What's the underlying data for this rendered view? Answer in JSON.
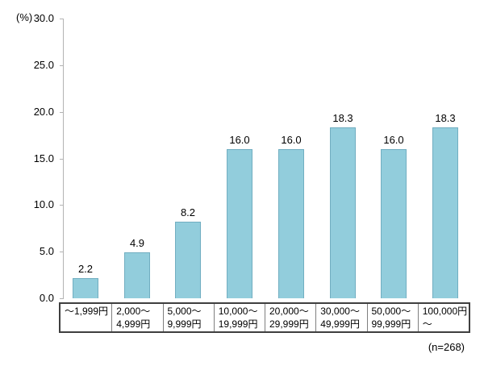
{
  "chart_data": {
    "type": "bar",
    "title": "",
    "xlabel": "",
    "ylabel": "(%)",
    "ylim": [
      0,
      30
    ],
    "ytick_step": 5,
    "ytick_labels": [
      "0.0",
      "5.0",
      "10.0",
      "15.0",
      "20.0",
      "25.0",
      "30.0"
    ],
    "grid": false,
    "legend_position": "none",
    "categories": [
      [
        "～1,999円"
      ],
      [
        "2,000～",
        "4,999円"
      ],
      [
        "5,000～",
        "9,999円"
      ],
      [
        "10,000～",
        "19,999円"
      ],
      [
        "20,000～",
        "29,999円"
      ],
      [
        "30,000～",
        "49,999円"
      ],
      [
        "50,000～",
        "99,999円"
      ],
      [
        "100,000円",
        "～"
      ]
    ],
    "values": [
      2.2,
      4.9,
      8.2,
      16.0,
      16.0,
      18.3,
      16.0,
      18.3
    ],
    "value_labels": [
      "2.2",
      "4.9",
      "8.2",
      "16.0",
      "16.0",
      "18.3",
      "16.0",
      "18.3"
    ],
    "note": "(n=268)",
    "colors": {
      "bar_fill": "#92CDDC",
      "bar_border": "#71AEC1",
      "axis": "#b3b3b3",
      "table_border": "#3f3f3f",
      "table_separator": "#7f7f7f",
      "text": "#000000"
    }
  }
}
